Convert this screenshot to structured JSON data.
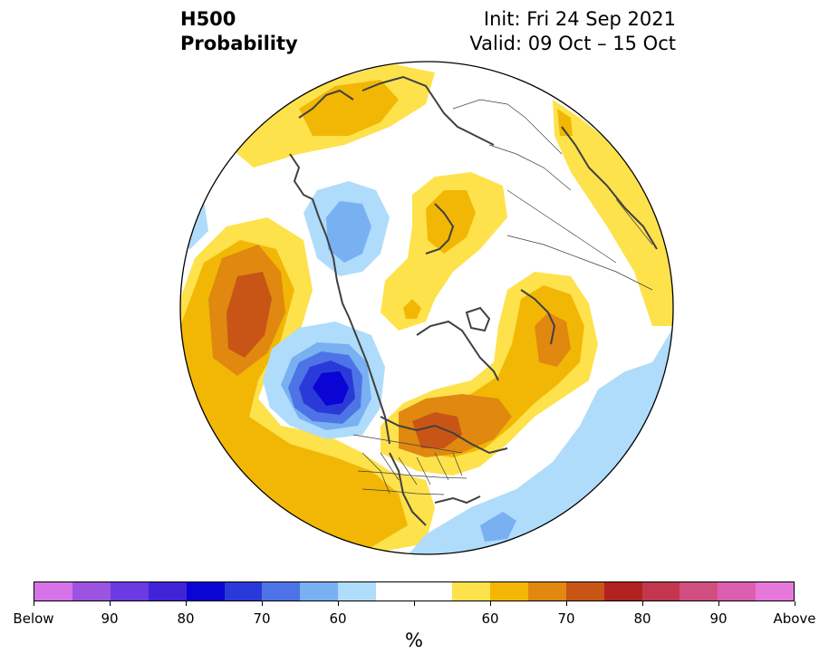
{
  "title": {
    "line1": "H500",
    "line2": "Probability"
  },
  "run": {
    "init": "Init: Fri 24 Sep 2021",
    "valid": "Valid: 09 Oct – 15 Oct"
  },
  "colorbar": {
    "colors": [
      "#d673e8",
      "#9c54e0",
      "#6b3ae0",
      "#4124d8",
      "#0a04d4",
      "#2a3ad8",
      "#4e73e6",
      "#78b0f2",
      "#afdcfa",
      "#ffffff",
      "#ffffff",
      "#fde24c",
      "#f2b705",
      "#e08810",
      "#c85516",
      "#b32222",
      "#c2374e",
      "#d14f80",
      "#dc5eb0",
      "#e778db"
    ],
    "labels": [
      "Below",
      "90",
      "80",
      "70",
      "60",
      "60",
      "70",
      "80",
      "90",
      "Above"
    ],
    "unit": "%"
  },
  "map_colors": {
    "yellow": "#fde24c",
    "gold": "#f2b705",
    "orange": "#e08810",
    "rust": "#c85516",
    "lightblue": "#afdcfa",
    "blue": "#78b0f2",
    "midblue": "#4e73e6",
    "royal": "#2a3ad8",
    "deepblue": "#0a04d4",
    "coast": "#404040"
  }
}
